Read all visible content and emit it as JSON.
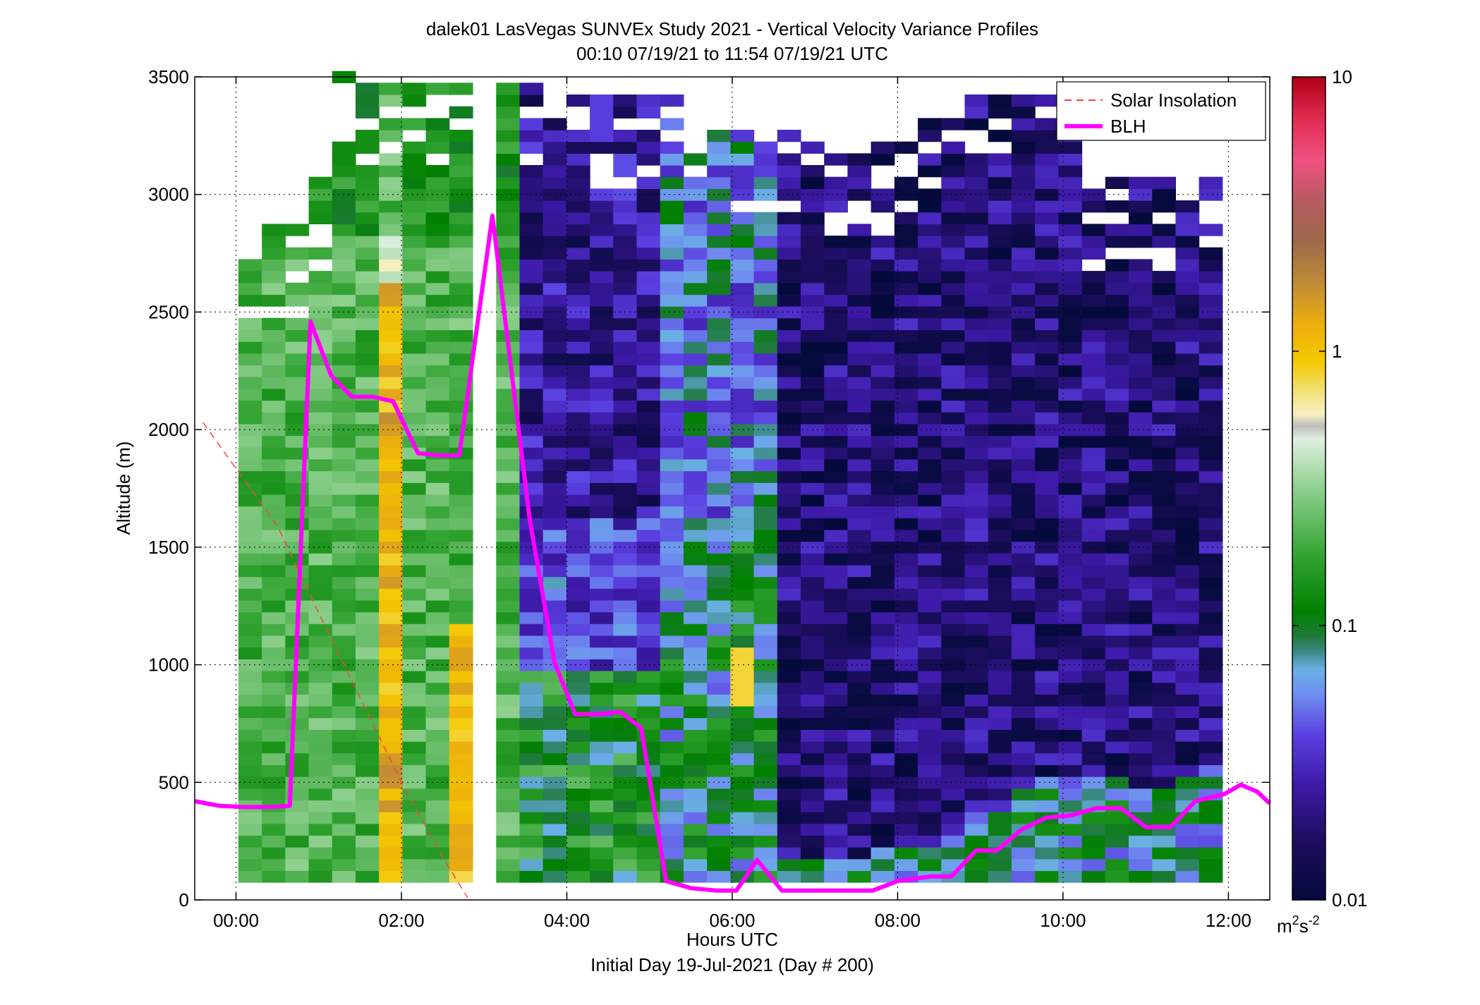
{
  "chart_data": {
    "type": "heatmap",
    "title": "dalek01 LasVegas SUNVEx Study 2021 - Vertical Velocity Variance Profiles",
    "subtitle": "00:10 07/19/21 to 11:54 07/19/21  UTC",
    "xlabel": "Hours UTC",
    "xlabel2": "Initial Day 19-Jul-2021 (Day # 200)",
    "ylabel": "Altitude (m)",
    "xlim": [
      -0.5,
      12.5
    ],
    "ylim": [
      0,
      3500
    ],
    "x_ticks": [
      0,
      2,
      4,
      6,
      8,
      10,
      12
    ],
    "x_tick_labels": [
      "00:00",
      "02:00",
      "04:00",
      "06:00",
      "08:00",
      "10:00",
      "12:00"
    ],
    "y_ticks": [
      0,
      500,
      1000,
      1500,
      2000,
      2500,
      3000,
      3500
    ],
    "y_tick_labels": [
      "0",
      "500",
      "1000",
      "1500",
      "2000",
      "2500",
      "3000",
      "3500"
    ],
    "grid": true,
    "legend_position": "top-right",
    "colorbar": {
      "scale": "log",
      "range": [
        0.01,
        10
      ],
      "ticks": [
        0.01,
        0.1,
        1,
        10
      ],
      "tick_labels": [
        "0.01",
        "0.1",
        "1",
        "10"
      ],
      "unit_base": "m",
      "unit_sup1": "2",
      "unit_mid": "s",
      "unit_sup2": "-2"
    },
    "heatmap": {
      "x_start": 0.17,
      "x_step": 0.2833,
      "n_cols": 42,
      "y_start": 100,
      "y_step": 50,
      "n_rows": 69,
      "note_values": "log10 of variance, estimated visually",
      "missing_column_index": 10
    },
    "series": [
      {
        "name": "Solar Insolation",
        "color": "#ff4040",
        "style": "dashed",
        "x": [
          -0.4,
          0.5,
          1.0,
          1.5,
          2.0,
          2.5,
          2.8
        ],
        "y": [
          2030,
          1590,
          1220,
          860,
          500,
          180,
          10
        ]
      },
      {
        "name": "BLH",
        "color": "#ff00ff",
        "style": "solid",
        "x": [
          -0.5,
          -0.2,
          0.1,
          0.4,
          0.65,
          0.9,
          1.15,
          1.4,
          1.65,
          1.9,
          2.2,
          2.45,
          2.7,
          3.1,
          3.55,
          3.85,
          4.1,
          4.4,
          4.65,
          4.9,
          5.2,
          5.5,
          5.8,
          6.05,
          6.3,
          6.6,
          7.0,
          7.4,
          7.7,
          8.0,
          8.4,
          8.65,
          8.95,
          9.2,
          9.5,
          9.8,
          10.1,
          10.4,
          10.7,
          11.0,
          11.3,
          11.6,
          11.95,
          12.15,
          12.35,
          12.5
        ],
        "y": [
          420,
          400,
          395,
          395,
          400,
          2460,
          2230,
          2140,
          2140,
          2120,
          1900,
          1890,
          1890,
          2910,
          1620,
          1010,
          790,
          790,
          800,
          730,
          80,
          50,
          40,
          40,
          170,
          40,
          40,
          40,
          40,
          80,
          100,
          100,
          210,
          210,
          300,
          350,
          360,
          390,
          390,
          310,
          310,
          420,
          450,
          490,
          460,
          410
        ]
      }
    ]
  }
}
